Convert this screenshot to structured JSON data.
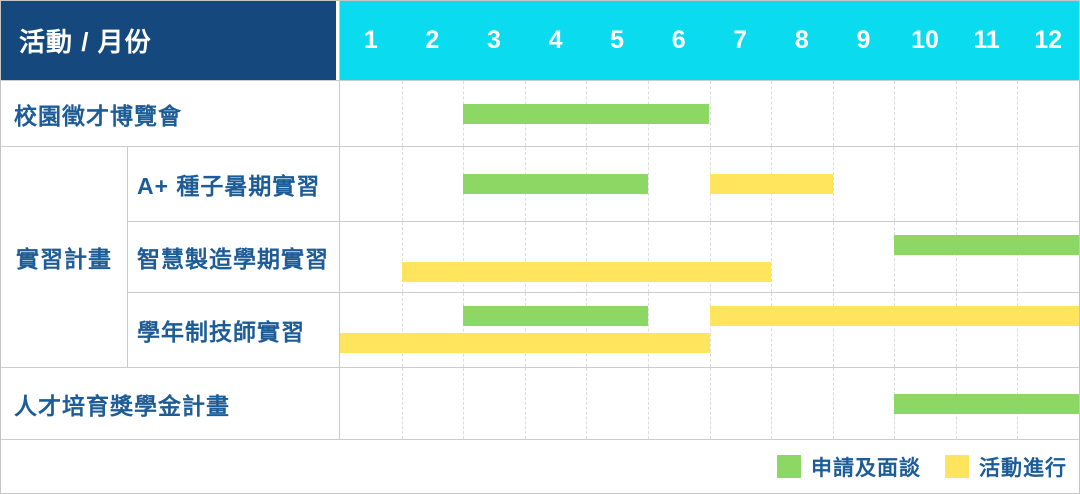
{
  "header": {
    "title": "活動 / 月份"
  },
  "colors": {
    "header_bg": "#15497e",
    "month_bar_bg": "#0adbee",
    "apply_green": "#8dd865",
    "active_yellow": "#ffe45e",
    "label_text": "#1d5c96",
    "header_text": "#ffffff",
    "grid_line": "#cccccc",
    "month_divider": "#dcdcdc",
    "outer_border": "#c6c6c6"
  },
  "chart_data": {
    "type": "gantt",
    "title": "活動 / 月份",
    "months": [
      "1",
      "2",
      "3",
      "4",
      "5",
      "6",
      "7",
      "8",
      "9",
      "10",
      "11",
      "12"
    ],
    "x_range": [
      1,
      12
    ],
    "group_label": "實習計畫",
    "rows": [
      {
        "label": "校園徵才博覽會",
        "group": null,
        "tracks": [
          [
            {
              "phase": "apply",
              "start_month": 3,
              "end_month": 6
            }
          ]
        ]
      },
      {
        "label": "A+ 種子暑期實習",
        "group": "實習計畫",
        "tracks": [
          [
            {
              "phase": "apply",
              "start_month": 3,
              "end_month": 5
            },
            {
              "phase": "active",
              "start_month": 7,
              "end_month": 8
            }
          ]
        ]
      },
      {
        "label": "智慧製造學期實習",
        "group": "實習計畫",
        "tracks": [
          [
            {
              "phase": "apply",
              "start_month": 10,
              "end_month": 12
            }
          ],
          [
            {
              "phase": "active",
              "start_month": 2,
              "end_month": 7
            }
          ]
        ]
      },
      {
        "label": "學年制技師實習",
        "group": "實習計畫",
        "tracks": [
          [
            {
              "phase": "apply",
              "start_month": 3,
              "end_month": 5
            },
            {
              "phase": "active",
              "start_month": 7,
              "end_month": 12
            }
          ],
          [
            {
              "phase": "active",
              "start_month": 1,
              "end_month": 6
            }
          ]
        ]
      },
      {
        "label": "人才培育獎學金計畫",
        "group": null,
        "tracks": [
          [
            {
              "phase": "apply",
              "start_month": 10,
              "end_month": 12
            }
          ]
        ]
      }
    ],
    "legend": [
      {
        "phase": "apply",
        "label": "申請及面談",
        "color": "#8dd865"
      },
      {
        "phase": "active",
        "label": "活動進行",
        "color": "#ffe45e"
      }
    ]
  }
}
